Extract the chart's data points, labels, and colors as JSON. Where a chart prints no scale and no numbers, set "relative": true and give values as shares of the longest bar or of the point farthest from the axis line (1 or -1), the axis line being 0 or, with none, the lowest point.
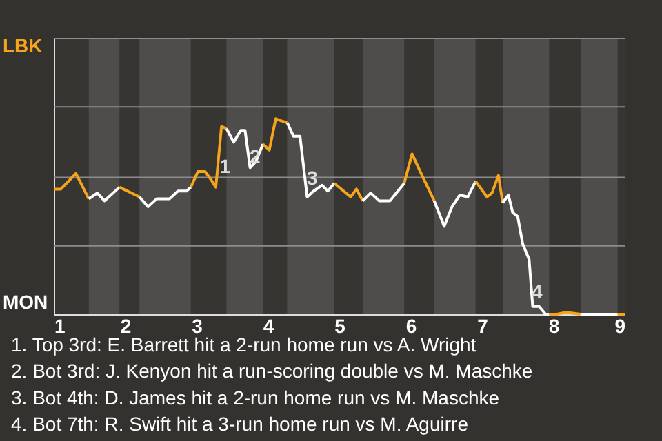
{
  "chart_data": {
    "type": "line",
    "relative": true,
    "series": [
      {
        "color": "#f5a41c",
        "x": [
          1,
          1.1,
          1.31,
          1.49
        ],
        "values": [
          0.64,
          0.64,
          0.72,
          0.59
        ]
      },
      {
        "color": "#ffffff",
        "x": [
          1.49,
          1.61,
          1.71,
          1.92
        ],
        "values": [
          0.59,
          0.62,
          0.58,
          0.65
        ]
      },
      {
        "color": "#f5a41c",
        "x": [
          1.92,
          2.2
        ],
        "values": [
          0.65,
          0.6
        ]
      },
      {
        "color": "#ffffff",
        "x": [
          2.2,
          2.32,
          2.44,
          2.62,
          2.74,
          2.86,
          2.92
        ],
        "values": [
          0.6,
          0.55,
          0.59,
          0.59,
          0.63,
          0.63,
          0.65
        ]
      },
      {
        "color": "#f5a41c",
        "x": [
          2.92,
          3.02,
          3.12,
          3.2,
          3.27,
          3.35,
          3.42
        ],
        "values": [
          0.65,
          0.73,
          0.73,
          0.69,
          0.65,
          0.96,
          0.95
        ]
      },
      {
        "color": "#ffffff",
        "x": [
          3.42,
          3.52,
          3.62,
          3.68,
          3.75,
          3.83,
          3.93
        ],
        "values": [
          0.95,
          0.88,
          0.94,
          0.94,
          0.75,
          0.78,
          0.87
        ]
      },
      {
        "color": "#f5a41c",
        "x": [
          3.93,
          4.02,
          4.11,
          4.18,
          4.27
        ],
        "values": [
          0.87,
          0.84,
          1,
          0.99,
          0.98
        ]
      },
      {
        "color": "#ffffff",
        "x": [
          4.27,
          4.36,
          4.45,
          4.55,
          4.64,
          4.76,
          4.84,
          4.93
        ],
        "values": [
          0.98,
          0.91,
          0.91,
          0.6,
          0.63,
          0.66,
          0.63,
          0.67
        ]
      },
      {
        "color": "#f5a41c",
        "x": [
          4.93,
          5.16,
          5.24,
          5.33
        ],
        "values": [
          0.67,
          0.6,
          0.64,
          0.58
        ]
      },
      {
        "color": "#ffffff",
        "x": [
          5.33,
          5.44,
          5.56,
          5.71,
          5.91
        ],
        "values": [
          0.58,
          0.62,
          0.58,
          0.58,
          0.67
        ]
      },
      {
        "color": "#f5a41c",
        "x": [
          5.91,
          6.02,
          6.16,
          6.33
        ],
        "values": [
          0.67,
          0.82,
          0.71,
          0.58
        ]
      },
      {
        "color": "#ffffff",
        "x": [
          6.33,
          6.47,
          6.58,
          6.69,
          6.8,
          6.91
        ],
        "values": [
          0.58,
          0.45,
          0.55,
          0.61,
          0.6,
          0.68
        ]
      },
      {
        "color": "#f5a41c",
        "x": [
          6.91,
          7.07,
          7.14,
          7.23,
          7.29
        ],
        "values": [
          0.68,
          0.6,
          0.62,
          0.71,
          0.57
        ]
      },
      {
        "color": "#ffffff",
        "x": [
          7.29,
          7.37,
          7.43,
          7.5,
          7.57,
          7.66,
          7.71,
          7.8,
          7.89,
          7.94
        ],
        "values": [
          0.57,
          0.61,
          0.52,
          0.5,
          0.36,
          0.28,
          0.04,
          0.04,
          0,
          0
        ]
      },
      {
        "color": "#f5a41c",
        "x": [
          7.94,
          8.05,
          8.18,
          8.38
        ],
        "values": [
          0,
          0,
          0.01,
          0
        ]
      },
      {
        "color": "#ffffff",
        "x": [
          8.38,
          8.65,
          8.9
        ],
        "values": [
          0,
          0,
          0
        ]
      },
      {
        "color": "#f5a41c",
        "x": [
          8.9,
          9
        ],
        "values": [
          0,
          0
        ]
      }
    ],
    "xlim": [
      1,
      9
    ],
    "xticks": [
      1,
      2,
      3,
      4,
      5,
      6,
      7,
      8,
      9
    ],
    "marker": "none",
    "ref_lines": [
      {
        "axis": "y",
        "value": 0.35,
        "color": "#8c8c8c"
      },
      {
        "axis": "y",
        "value": 0.7,
        "color": "#8c8c8c"
      },
      {
        "axis": "y",
        "value": 1.06,
        "color": "#8c8c8c"
      },
      {
        "axis": "y",
        "value": 1.41,
        "color": "#8c8c8c"
      }
    ],
    "bands": [
      {
        "axis": "x",
        "from": 1.49,
        "to": 1.92,
        "color": "#4f4d4b"
      },
      {
        "axis": "x",
        "from": 2.2,
        "to": 2.92,
        "color": "#4f4d4b"
      },
      {
        "axis": "x",
        "from": 3.42,
        "to": 3.93,
        "color": "#4f4d4b"
      },
      {
        "axis": "x",
        "from": 4.27,
        "to": 4.93,
        "color": "#4f4d4b"
      },
      {
        "axis": "x",
        "from": 5.33,
        "to": 5.91,
        "color": "#4f4d4b"
      },
      {
        "axis": "x",
        "from": 6.33,
        "to": 6.91,
        "color": "#4f4d4b"
      },
      {
        "axis": "x",
        "from": 7.29,
        "to": 7.94,
        "color": "#4f4d4b"
      },
      {
        "axis": "x",
        "from": 8.38,
        "to": 8.9,
        "color": "#4f4d4b"
      }
    ],
    "annotations": [
      "LBK",
      "MON",
      {
        "text": "1",
        "x": 3.4,
        "y": 0.75
      },
      {
        "text": "2",
        "x": 3.82,
        "y": 0.8
      },
      {
        "text": "3",
        "x": 4.62,
        "y": 0.69
      },
      {
        "text": "4",
        "x": 7.77,
        "y": 0.11
      },
      "1. Top 3rd: E. Barrett hit a 2-run home run vs A. Wright",
      "2. Bot 3rd: J. Kenyon hit a run-scoring double vs M. Maschke",
      "3. Bot 4th: D. James hit a 2-run home run vs M. Maschke",
      "4. Bot 7th: R. Swift hit a 3-run home run vs M. Aguirre"
    ]
  }
}
